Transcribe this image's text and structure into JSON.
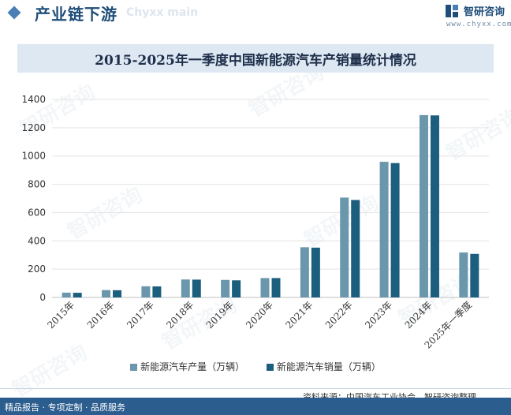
{
  "header": {
    "title": "产业链下游",
    "watermark": "Chyxx main",
    "logo_text": "智研咨询",
    "logo_url": "www.chyxx.com"
  },
  "watermark_text": "智研咨询",
  "source": "资料来源：中国汽车工业协会、智研咨询整理",
  "footer": "精品报告 · 专项定制 · 品质服务",
  "colors": {
    "production": "#6b97ad",
    "sales": "#1c5e7d",
    "accent": "#2b5d8e"
  },
  "chart_data": {
    "type": "bar",
    "title": "2015-2025年一季度中国新能源汽车产销量统计情况",
    "categories": [
      "2015年",
      "2016年",
      "2017年",
      "2018年",
      "2019年",
      "2020年",
      "2021年",
      "2022年",
      "2023年",
      "2024年",
      "2025年一季度"
    ],
    "series": [
      {
        "name": "新能源汽车产量（万辆）",
        "values": [
          34,
          52,
          79,
          127,
          124,
          137,
          355,
          706,
          959,
          1289,
          318
        ]
      },
      {
        "name": "新能源汽车销量（万辆）",
        "values": [
          33,
          51,
          78,
          126,
          121,
          137,
          352,
          689,
          950,
          1287,
          308
        ]
      }
    ],
    "ylim": [
      0,
      1400
    ],
    "yticks": [
      0,
      200,
      400,
      600,
      800,
      1000,
      1200,
      1400
    ],
    "grid": true,
    "legend": "bottom"
  }
}
